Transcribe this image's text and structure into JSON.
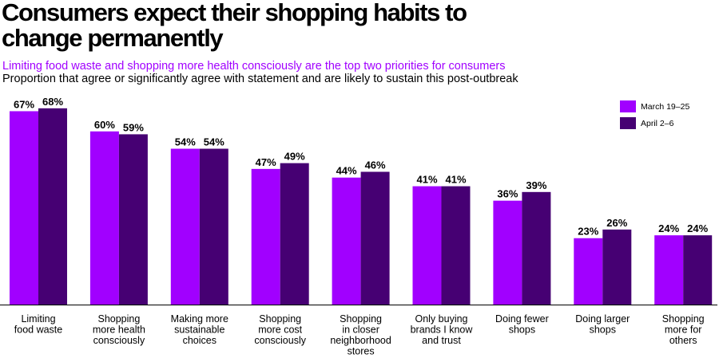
{
  "header": {
    "title_line1": "Consumers expect their shopping habits to",
    "title_line2": "change permanently",
    "subtitle": "Limiting food waste and shopping more health consciously are the top two priorities for consumers",
    "caption": "Proportion that agree or significantly agree with statement and are likely to sustain this post-outbreak"
  },
  "chart_data": {
    "type": "bar",
    "categories": [
      [
        "Limiting",
        "food waste"
      ],
      [
        "Shopping",
        "more health",
        "consciously"
      ],
      [
        "Making more",
        "sustainable",
        "choices"
      ],
      [
        "Shopping",
        "more cost",
        "consciously"
      ],
      [
        "Shopping",
        "in closer",
        "neighborhood",
        "stores"
      ],
      [
        "Only buying",
        "brands I know",
        "and trust"
      ],
      [
        "Doing fewer",
        "shops"
      ],
      [
        "Doing larger",
        "shops"
      ],
      [
        "Shopping",
        "more for",
        "others"
      ]
    ],
    "series": [
      {
        "name": "March 19–25",
        "color": "#a100ff",
        "values": [
          67,
          60,
          54,
          47,
          44,
          41,
          36,
          23,
          24
        ]
      },
      {
        "name": "April 2–6",
        "color": "#460073",
        "values": [
          68,
          59,
          54,
          49,
          46,
          41,
          39,
          26,
          24
        ]
      }
    ],
    "value_suffix": "%",
    "ylim": [
      0,
      70
    ],
    "grid": false,
    "legend_position": "top-right"
  }
}
